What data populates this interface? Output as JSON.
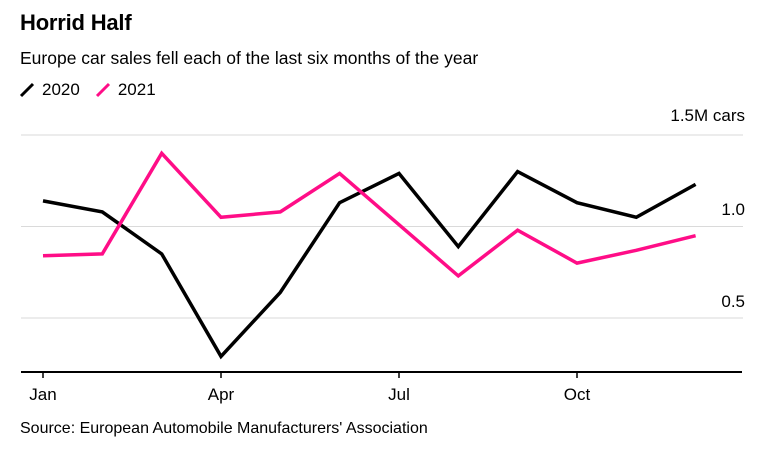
{
  "header": {
    "title": "Horrid Half",
    "subtitle": "Europe car sales fell each of the last six months of the year"
  },
  "chart_data": {
    "type": "line",
    "title": "Horrid Half",
    "subtitle": "Europe car sales fell each of the last six months of the year",
    "x": [
      "Jan",
      "Feb",
      "Mar",
      "Apr",
      "May",
      "Jun",
      "Jul",
      "Aug",
      "Sep",
      "Oct",
      "Nov",
      "Dec"
    ],
    "x_tick_labels": [
      "Jan",
      "Apr",
      "Jul",
      "Oct"
    ],
    "series": [
      {
        "name": "2020",
        "color": "#000000",
        "values": [
          1.14,
          1.08,
          0.85,
          0.29,
          0.64,
          1.13,
          1.29,
          0.89,
          1.3,
          1.13,
          1.05,
          1.23
        ]
      },
      {
        "name": "2021",
        "color": "#ff0d87",
        "values": [
          0.84,
          0.85,
          1.4,
          1.05,
          1.08,
          1.29,
          1.01,
          0.73,
          0.98,
          0.8,
          0.87,
          0.95
        ]
      }
    ],
    "y_axis": {
      "ticks": [
        {
          "value": 1.5,
          "label": "1.5M cars"
        },
        {
          "value": 1.0,
          "label": "1.0"
        },
        {
          "value": 0.5,
          "label": "0.5"
        }
      ],
      "range_bottom": 0.2,
      "range_top": 1.55
    },
    "grid": true,
    "legend_position": "top-left"
  },
  "source": "Source: European Automobile Manufacturers' Association",
  "colors": {
    "grid": "#dadada",
    "axis": "#000000",
    "series_2020": "#000000",
    "series_2021": "#ff0d87",
    "background": "#ffffff"
  }
}
